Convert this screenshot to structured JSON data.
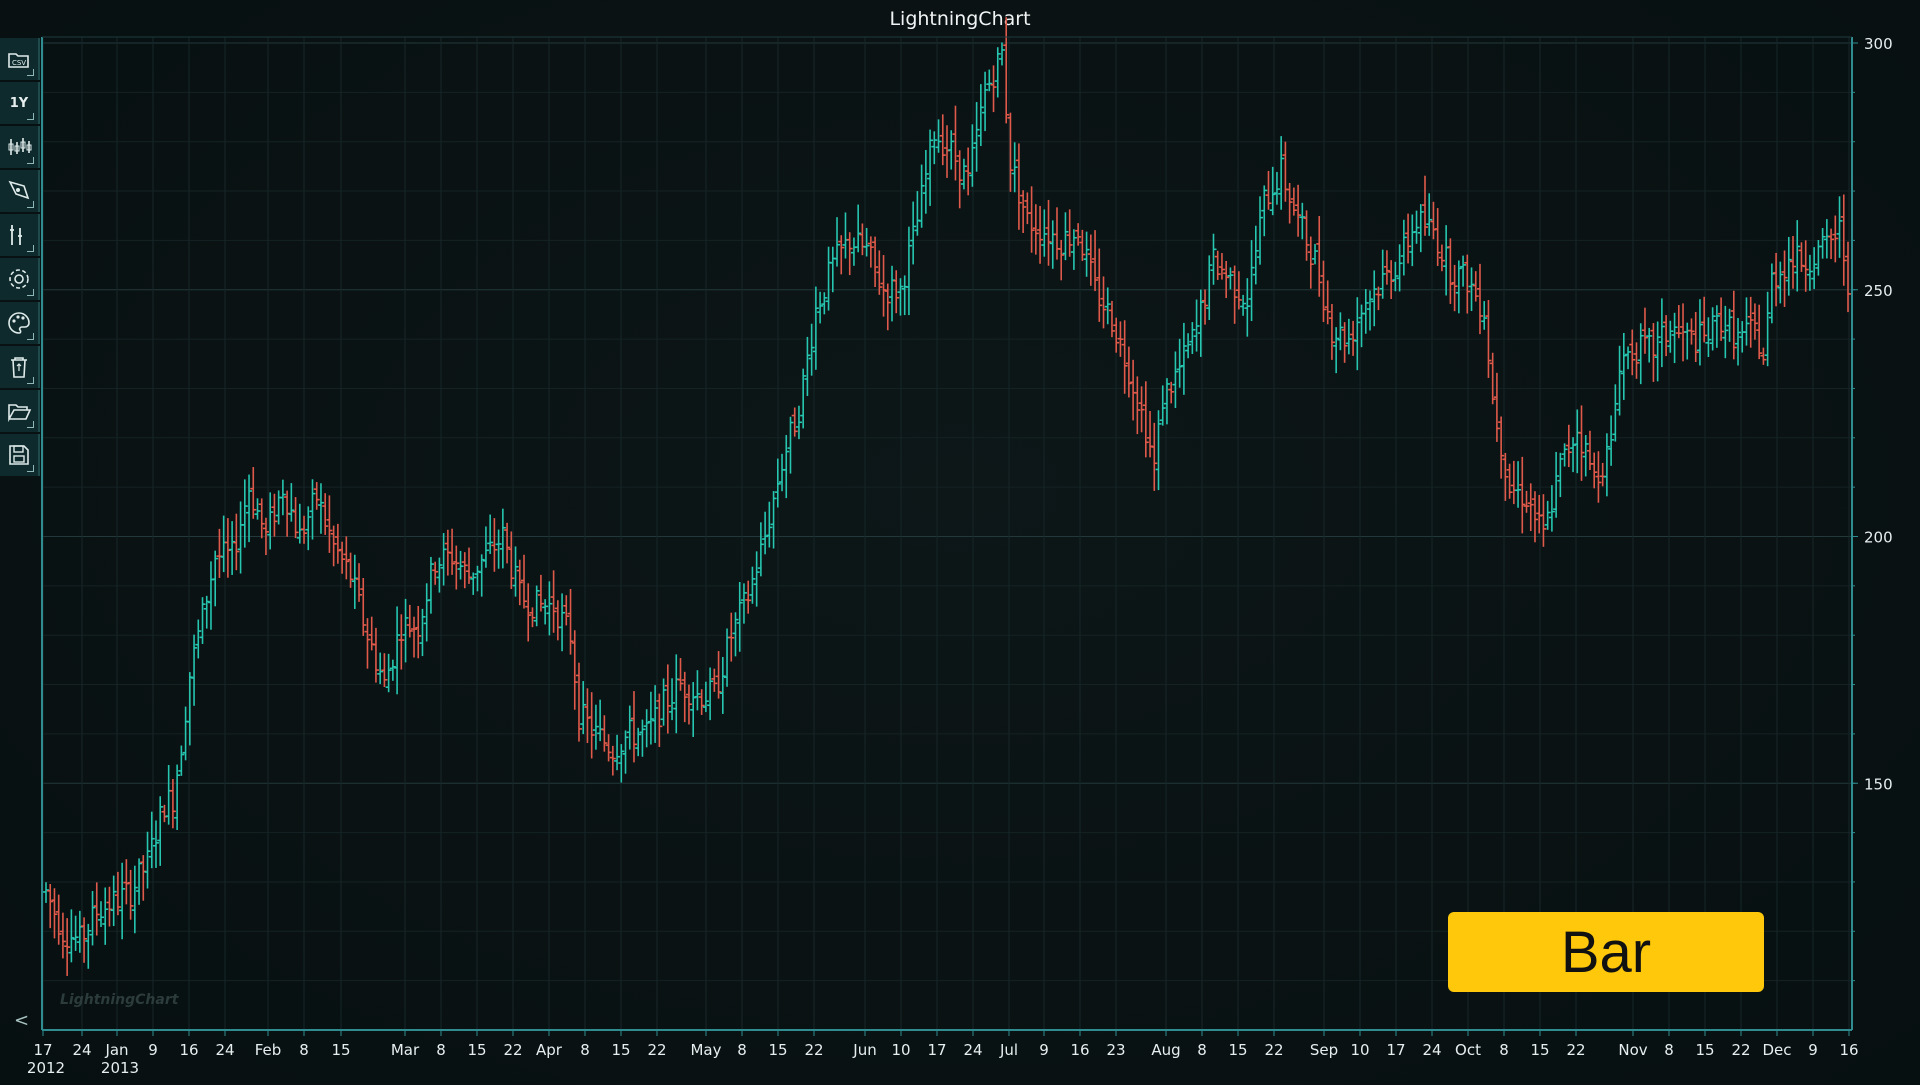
{
  "title": "LightningChart",
  "watermark": "LightningChart",
  "badge": "Bar",
  "colors": {
    "up": "#26c6b0",
    "down": "#e05a4b",
    "axis": "#2f8d92",
    "grid": "#1c2e30"
  },
  "toolbar": [
    {
      "name": "csv-open-icon",
      "text": ""
    },
    {
      "name": "time-range-button",
      "text": "1Y"
    },
    {
      "name": "chart-type-icon",
      "text": ""
    },
    {
      "name": "draw-tool-icon",
      "text": ""
    },
    {
      "name": "indicators-icon",
      "text": ""
    },
    {
      "name": "settings-icon",
      "text": ""
    },
    {
      "name": "theme-palette-icon",
      "text": ""
    },
    {
      "name": "recycle-bin-icon",
      "text": ""
    },
    {
      "name": "open-folder-icon",
      "text": ""
    },
    {
      "name": "save-icon",
      "text": ""
    }
  ],
  "collapse_label": "<",
  "chart_data": {
    "type": "bar",
    "subtype": "ohlc",
    "title": "LightningChart",
    "y_ticks": [
      150,
      200,
      250,
      300
    ],
    "ylim": [
      100,
      300
    ],
    "grid": true,
    "x_ticks": [
      {
        "label": "17",
        "year": "2012",
        "x": 43
      },
      {
        "label": "24",
        "x": 82
      },
      {
        "label": "Jan",
        "year": "2013",
        "x": 117
      },
      {
        "label": "9",
        "x": 153
      },
      {
        "label": "16",
        "x": 189
      },
      {
        "label": "24",
        "x": 225
      },
      {
        "label": "Feb",
        "x": 268
      },
      {
        "label": "8",
        "x": 304
      },
      {
        "label": "15",
        "x": 341
      },
      {
        "label": "Mar",
        "x": 405
      },
      {
        "label": "8",
        "x": 441
      },
      {
        "label": "15",
        "x": 477
      },
      {
        "label": "22",
        "x": 513
      },
      {
        "label": "Apr",
        "x": 549
      },
      {
        "label": "8",
        "x": 585
      },
      {
        "label": "15",
        "x": 621
      },
      {
        "label": "22",
        "x": 657
      },
      {
        "label": "May",
        "x": 706
      },
      {
        "label": "8",
        "x": 742
      },
      {
        "label": "15",
        "x": 778
      },
      {
        "label": "22",
        "x": 814
      },
      {
        "label": "Jun",
        "x": 865
      },
      {
        "label": "10",
        "x": 901
      },
      {
        "label": "17",
        "x": 937
      },
      {
        "label": "24",
        "x": 973
      },
      {
        "label": "Jul",
        "x": 1009
      },
      {
        "label": "9",
        "x": 1044
      },
      {
        "label": "16",
        "x": 1080
      },
      {
        "label": "23",
        "x": 1116
      },
      {
        "label": "Aug",
        "x": 1166
      },
      {
        "label": "8",
        "x": 1202
      },
      {
        "label": "15",
        "x": 1238
      },
      {
        "label": "22",
        "x": 1274
      },
      {
        "label": "Sep",
        "x": 1324
      },
      {
        "label": "10",
        "x": 1360
      },
      {
        "label": "17",
        "x": 1396
      },
      {
        "label": "24",
        "x": 1432
      },
      {
        "label": "Oct",
        "x": 1468
      },
      {
        "label": "8",
        "x": 1504
      },
      {
        "label": "15",
        "x": 1540
      },
      {
        "label": "22",
        "x": 1576
      },
      {
        "label": "Nov",
        "x": 1633
      },
      {
        "label": "8",
        "x": 1669
      },
      {
        "label": "15",
        "x": 1705
      },
      {
        "label": "22",
        "x": 1741
      },
      {
        "label": "Dec",
        "x": 1777
      },
      {
        "label": "9",
        "x": 1813
      },
      {
        "label": "16",
        "x": 1849
      }
    ],
    "price_path": [
      [
        0,
        128
      ],
      [
        4,
        120
      ],
      [
        8,
        118
      ],
      [
        12,
        124
      ],
      [
        16,
        126
      ],
      [
        20,
        128
      ],
      [
        24,
        134
      ],
      [
        28,
        146
      ],
      [
        30,
        147
      ],
      [
        32,
        158
      ],
      [
        34,
        172
      ],
      [
        36,
        180
      ],
      [
        40,
        196
      ],
      [
        44,
        196
      ],
      [
        48,
        210
      ],
      [
        52,
        200
      ],
      [
        56,
        210
      ],
      [
        60,
        200
      ],
      [
        64,
        208
      ],
      [
        68,
        198
      ],
      [
        72,
        192
      ],
      [
        76,
        180
      ],
      [
        80,
        170
      ],
      [
        84,
        182
      ],
      [
        88,
        182
      ],
      [
        92,
        195
      ],
      [
        96,
        196
      ],
      [
        100,
        192
      ],
      [
        104,
        196
      ],
      [
        108,
        200
      ],
      [
        112,
        188
      ],
      [
        116,
        186
      ],
      [
        120,
        186
      ],
      [
        124,
        180
      ],
      [
        126,
        164
      ],
      [
        130,
        160
      ],
      [
        134,
        157
      ],
      [
        138,
        160
      ],
      [
        142,
        160
      ],
      [
        146,
        166
      ],
      [
        150,
        170
      ],
      [
        154,
        168
      ],
      [
        158,
        168
      ],
      [
        162,
        180
      ],
      [
        166,
        188
      ],
      [
        170,
        200
      ],
      [
        174,
        215
      ],
      [
        178,
        226
      ],
      [
        182,
        246
      ],
      [
        186,
        255
      ],
      [
        190,
        260
      ],
      [
        194,
        258
      ],
      [
        198,
        250
      ],
      [
        202,
        250
      ],
      [
        206,
        264
      ],
      [
        210,
        282
      ],
      [
        214,
        278
      ],
      [
        218,
        272
      ],
      [
        222,
        290
      ],
      [
        226,
        298
      ],
      [
        228,
        276
      ],
      [
        232,
        264
      ],
      [
        236,
        262
      ],
      [
        240,
        260
      ],
      [
        244,
        262
      ],
      [
        248,
        250
      ],
      [
        252,
        244
      ],
      [
        256,
        234
      ],
      [
        260,
        222
      ],
      [
        262,
        214
      ],
      [
        264,
        228
      ],
      [
        268,
        234
      ],
      [
        272,
        242
      ],
      [
        276,
        256
      ],
      [
        280,
        252
      ],
      [
        284,
        248
      ],
      [
        288,
        268
      ],
      [
        292,
        274
      ],
      [
        296,
        264
      ],
      [
        300,
        256
      ],
      [
        304,
        242
      ],
      [
        308,
        240
      ],
      [
        312,
        248
      ],
      [
        316,
        252
      ],
      [
        320,
        256
      ],
      [
        324,
        264
      ],
      [
        328,
        262
      ],
      [
        332,
        254
      ],
      [
        336,
        252
      ],
      [
        340,
        246
      ],
      [
        342,
        228
      ],
      [
        346,
        210
      ],
      [
        350,
        208
      ],
      [
        354,
        200
      ],
      [
        358,
        214
      ],
      [
        362,
        222
      ],
      [
        366,
        212
      ],
      [
        370,
        218
      ],
      [
        372,
        236
      ],
      [
        376,
        238
      ],
      [
        380,
        238
      ],
      [
        384,
        242
      ],
      [
        388,
        240
      ],
      [
        392,
        240
      ],
      [
        396,
        244
      ],
      [
        400,
        240
      ],
      [
        404,
        242
      ],
      [
        406,
        236
      ],
      [
        408,
        252
      ],
      [
        412,
        256
      ],
      [
        416,
        256
      ],
      [
        420,
        258
      ],
      [
        424,
        262
      ],
      [
        426,
        252
      ]
    ]
  }
}
